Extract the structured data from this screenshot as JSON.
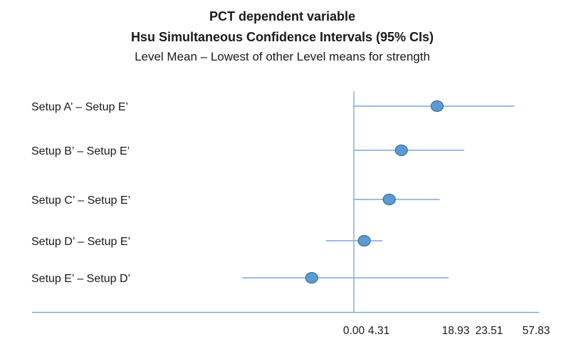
{
  "chart_data": {
    "type": "interval",
    "title": "PCT dependent variable",
    "subtitle": "Hsu Simultaneous Confidence Intervals (95% CIs)",
    "caption": "Level Mean – Lowest of other Level means for strength",
    "categories": [
      "Setup A’ – Setup E’",
      "Setup B’ – Setup E’",
      "Setup C’ – Setup E’",
      "Setup D’ – Setup E’",
      "Setup E’ – Setup D’"
    ],
    "series": [
      {
        "name": "95% CI",
        "points": [
          {
            "lower": 0.0,
            "center": 15.4,
            "upper": 41.9
          },
          {
            "lower": 0.0,
            "center": 8.6,
            "upper": 20.1
          },
          {
            "lower": 0.0,
            "center": 6.3,
            "upper": 15.9
          },
          {
            "lower": -4.8,
            "center": 1.8,
            "upper": 5.0
          },
          {
            "lower": -19.3,
            "center": -7.3,
            "upper": 17.6
          }
        ]
      }
    ],
    "x_tick_labels": [
      "0.00",
      "4.31",
      "18.93",
      "23.51",
      "57.83"
    ],
    "x_tick_values": [
      0.0,
      4.31,
      18.93,
      23.51,
      57.83
    ],
    "reference_line_x": 0,
    "grid": false,
    "legend": "none",
    "colors": {
      "interval_line": "#7EA6D9",
      "marker_fill": "#5B9BD5",
      "marker_stroke": "#41719C",
      "axis_line": "#6C9BD2",
      "text": "#1a1a1a"
    }
  }
}
